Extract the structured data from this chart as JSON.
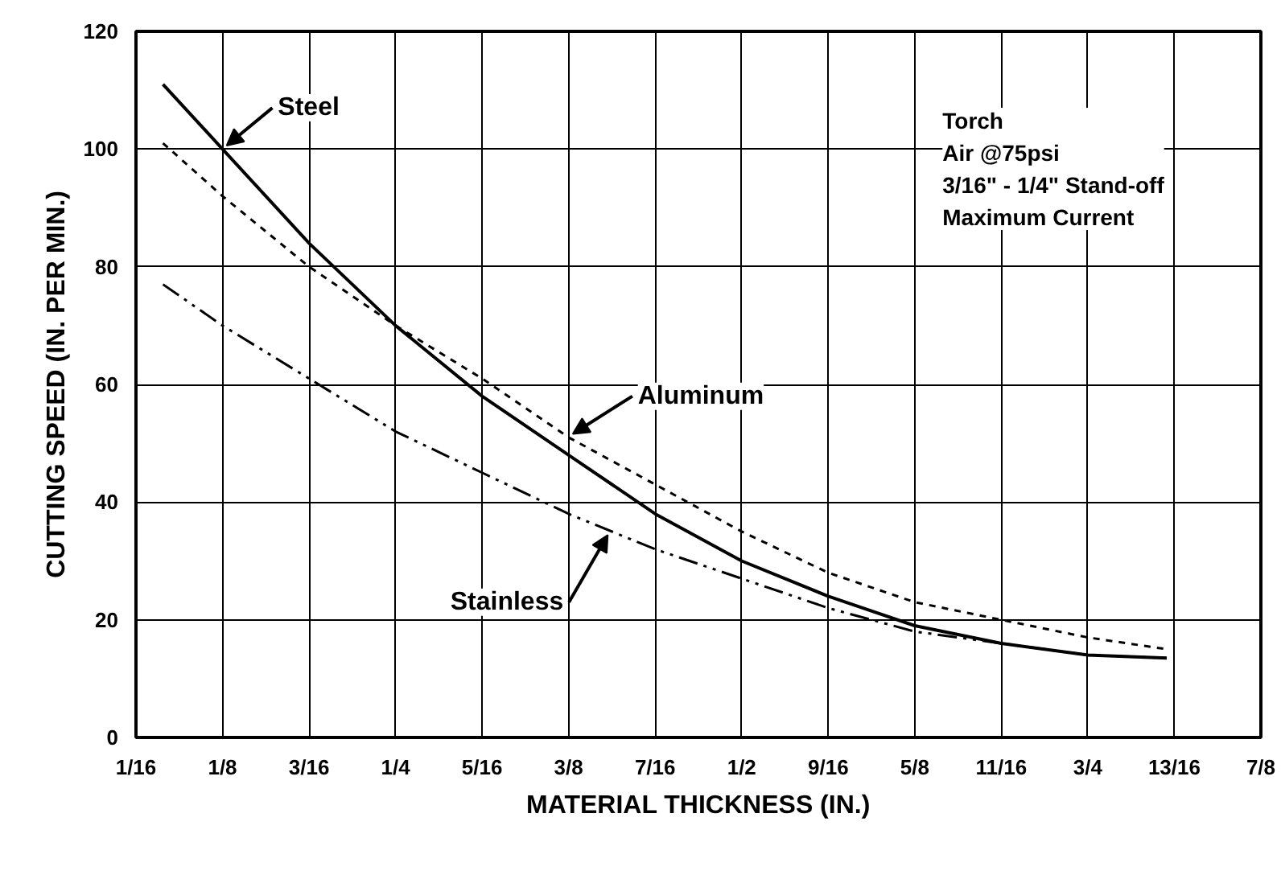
{
  "chart_data": {
    "type": "line",
    "xlabel": "MATERIAL THICKNESS (IN.)",
    "ylabel": "CUTTING SPEED (IN. PER MIN.)",
    "xlim": [
      0.0625,
      0.875
    ],
    "xticks": [
      {
        "value": 0.0625,
        "label": "1/16"
      },
      {
        "value": 0.125,
        "label": "1/8"
      },
      {
        "value": 0.1875,
        "label": "3/16"
      },
      {
        "value": 0.25,
        "label": "1/4"
      },
      {
        "value": 0.3125,
        "label": "5/16"
      },
      {
        "value": 0.375,
        "label": "3/8"
      },
      {
        "value": 0.4375,
        "label": "7/16"
      },
      {
        "value": 0.5,
        "label": "1/2"
      },
      {
        "value": 0.5625,
        "label": "9/16"
      },
      {
        "value": 0.625,
        "label": "5/8"
      },
      {
        "value": 0.6875,
        "label": "11/16"
      },
      {
        "value": 0.75,
        "label": "3/4"
      },
      {
        "value": 0.8125,
        "label": "13/16"
      },
      {
        "value": 0.875,
        "label": "7/8"
      }
    ],
    "ylim": [
      0,
      120
    ],
    "yticks": [
      0,
      20,
      40,
      60,
      80,
      100,
      120
    ],
    "grid": true,
    "marker": "none",
    "x": [
      0.082,
      0.125,
      0.1875,
      0.25,
      0.3125,
      0.375,
      0.4375,
      0.5,
      0.5625,
      0.625,
      0.6875,
      0.75,
      0.807
    ],
    "series": [
      {
        "name": "Steel",
        "color": "#000000",
        "line_style": "solid",
        "values": [
          111,
          100,
          84,
          70,
          58,
          48,
          38,
          30,
          24,
          19,
          16,
          14,
          13.5
        ]
      },
      {
        "name": "Aluminum",
        "color": "#000000",
        "line_style": "dashed",
        "values": [
          101,
          92,
          80,
          70,
          61,
          51,
          43,
          35,
          28,
          23,
          20,
          17,
          15
        ]
      },
      {
        "name": "Stainless",
        "color": "#000000",
        "line_style": "dashdot",
        "values": [
          77,
          70,
          61,
          52,
          45,
          38,
          32,
          27,
          22,
          18,
          16,
          14,
          13.5
        ]
      }
    ],
    "annotations": [
      "Torch\nAir @75psi\n3/16\" - 1/4\" Stand-off\nMaximum Current"
    ]
  }
}
